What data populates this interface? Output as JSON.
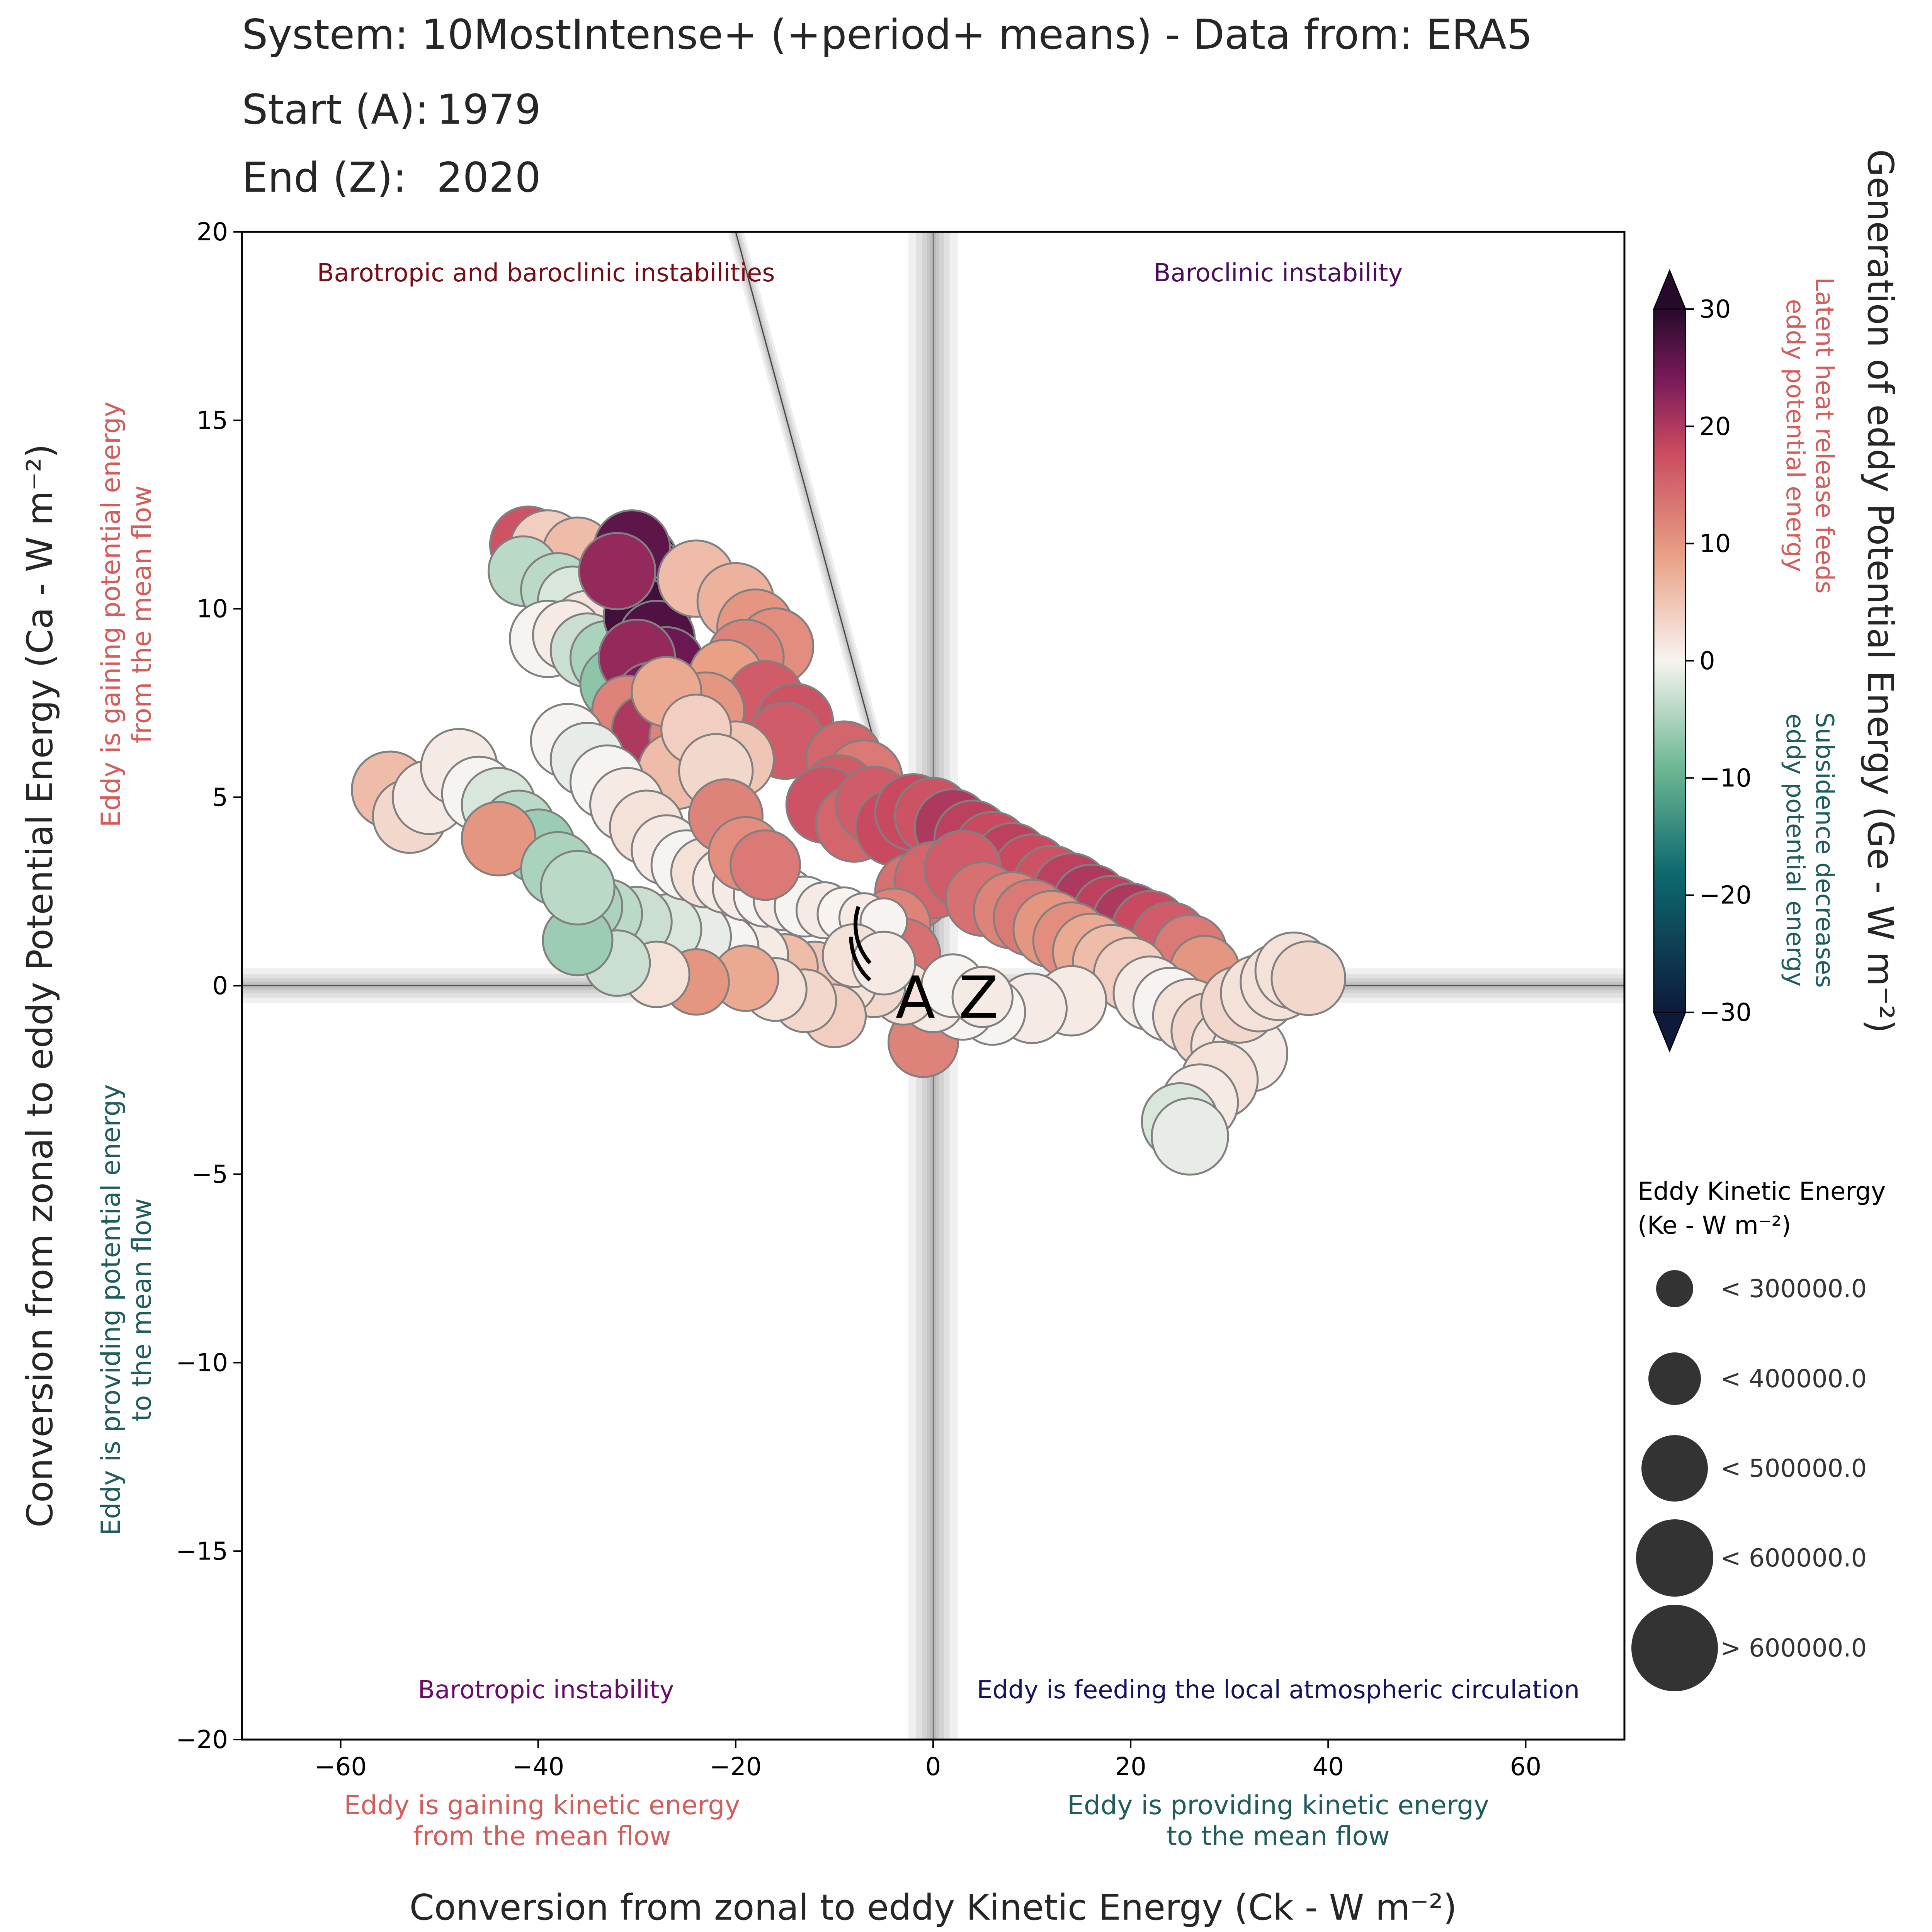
{
  "header": {
    "system_line": "System: 10MostIntense+ (+period+ means) - Data from: ERA5",
    "start_label": "Start (A):",
    "start_value": "1979",
    "end_label": "End (Z):",
    "end_value": "2020"
  },
  "colors": {
    "barotropic_baroclinic": "#7a0a14",
    "baroclinic": "#4b0c5c",
    "barotropic": "#6a0a6a",
    "feeding": "#13135e",
    "gaining": "#d35d5b",
    "providing": "#1f5c5e",
    "marker_edge": "#808080",
    "legend_marker": "#333333"
  },
  "chart_data": {
    "type": "scatter",
    "xlabel": "Conversion from zonal to eddy Kinetic Energy (Ck - W m⁻²)",
    "ylabel": "Conversion from zonal to eddy Potential Energy (Ca - W m⁻²)",
    "xlim": [
      -70,
      70
    ],
    "ylim": [
      -20,
      20
    ],
    "x_ticks": [
      -60,
      -40,
      -20,
      0,
      20,
      40,
      60
    ],
    "x_tick_labels": [
      "−60",
      "−40",
      "−20",
      "0",
      "20",
      "40",
      "60"
    ],
    "y_ticks": [
      -20,
      -15,
      -10,
      -5,
      0,
      5,
      10,
      15,
      20
    ],
    "y_tick_labels": [
      "−20",
      "−15",
      "−10",
      "−5",
      "0",
      "5",
      "10",
      "15",
      "20"
    ],
    "quadrant_labels": {
      "top_left": "Barotropic and baroclinic instabilities",
      "top_right": "Baroclinic instability",
      "bottom_left": "Barotropic instability",
      "bottom_right": "Eddy is feeding the local atmospheric circulation"
    },
    "side_labels": {
      "y_top": "Eddy is gaining potential energy\nfrom the mean flow",
      "y_bottom": "Eddy is providing potential energy\nto the mean flow",
      "x_left": "Eddy is gaining kinetic energy\nfrom the mean flow",
      "x_right": "Eddy is providing kinetic energy\nto the mean flow"
    },
    "start_marker": "A",
    "end_marker": "Z",
    "colorbar": {
      "label": "Generation of eddy Potential Energy (Ge - W m⁻²)",
      "min": -30,
      "max": 30,
      "ticks": [
        30,
        20,
        10,
        0,
        -10,
        -20,
        -30
      ],
      "tick_labels": [
        "30",
        "20",
        "10",
        "0",
        "−10",
        "−20",
        "−30"
      ],
      "upper_note": "Latent heat release feeds\neddy potential energy",
      "lower_note": "Subsidence decreases\neddy potential energy"
    },
    "size_legend": {
      "title": "Eddy Kinetic Energy\n(Ke - W m⁻²)",
      "entries": [
        "< 300000.0",
        "< 400000.0",
        "< 500000.0",
        "< 600000.0",
        "> 600000.0"
      ]
    },
    "points": [
      {
        "x": -41,
        "y": 11.7,
        "ge": 17,
        "ke": 500000
      },
      {
        "x": -39,
        "y": 11.6,
        "ge": 4,
        "ke": 500000
      },
      {
        "x": -36,
        "y": 11.5,
        "ge": 6,
        "ke": 450000
      },
      {
        "x": -41.5,
        "y": 11,
        "ge": -4,
        "ke": 450000
      },
      {
        "x": -38,
        "y": 10.5,
        "ge": -4,
        "ke": 480000
      },
      {
        "x": -36.5,
        "y": 10.2,
        "ge": -2,
        "ke": 450000
      },
      {
        "x": -35,
        "y": 9.5,
        "ge": 2,
        "ke": 480000
      },
      {
        "x": -39,
        "y": 9.2,
        "ge": 0,
        "ke": 500000
      },
      {
        "x": -37,
        "y": 9.3,
        "ge": 1,
        "ke": 450000
      },
      {
        "x": -35,
        "y": 8.9,
        "ge": -3,
        "ke": 480000
      },
      {
        "x": -33,
        "y": 8.7,
        "ge": -5,
        "ke": 480000
      },
      {
        "x": -32,
        "y": 8.0,
        "ge": -7,
        "ke": 480000
      },
      {
        "x": -30,
        "y": 11.2,
        "ge": 30,
        "ke": 550000
      },
      {
        "x": -29,
        "y": 10.8,
        "ge": 28,
        "ke": 550000
      },
      {
        "x": -28,
        "y": 10.4,
        "ge": 30,
        "ke": 550000
      },
      {
        "x": -29.5,
        "y": 9.8,
        "ge": 28,
        "ke": 500000
      },
      {
        "x": -30.5,
        "y": 11.6,
        "ge": 26,
        "ke": 500000
      },
      {
        "x": -32,
        "y": 11.0,
        "ge": 22,
        "ke": 500000
      },
      {
        "x": -28,
        "y": 9.2,
        "ge": 27,
        "ke": 500000
      },
      {
        "x": -27,
        "y": 8.5,
        "ge": 25,
        "ke": 500000
      },
      {
        "x": -30,
        "y": 8.7,
        "ge": 22,
        "ke": 500000
      },
      {
        "x": -28.5,
        "y": 7.6,
        "ge": 24,
        "ke": 480000
      },
      {
        "x": -31,
        "y": 7.3,
        "ge": 12,
        "ke": 450000
      },
      {
        "x": -29,
        "y": 6.8,
        "ge": 20,
        "ke": 450000
      },
      {
        "x": -24,
        "y": 10.8,
        "ge": 6,
        "ke": 500000
      },
      {
        "x": -20,
        "y": 10.2,
        "ge": 7,
        "ke": 500000
      },
      {
        "x": -18,
        "y": 9.5,
        "ge": 10,
        "ke": 500000
      },
      {
        "x": -16,
        "y": 9.0,
        "ge": 11,
        "ke": 500000
      },
      {
        "x": -19,
        "y": 8.7,
        "ge": 12,
        "ke": 500000
      },
      {
        "x": -21,
        "y": 8.2,
        "ge": 9,
        "ke": 480000
      },
      {
        "x": -17,
        "y": 7.6,
        "ge": 16,
        "ke": 500000
      },
      {
        "x": -14,
        "y": 7.0,
        "ge": 17,
        "ke": 500000
      },
      {
        "x": -15,
        "y": 6.5,
        "ge": 16,
        "ke": 500000
      },
      {
        "x": -23,
        "y": 7.3,
        "ge": 10,
        "ke": 500000
      },
      {
        "x": -25,
        "y": 6.6,
        "ge": 12,
        "ke": 480000
      },
      {
        "x": -26,
        "y": 5.7,
        "ge": 6,
        "ke": 500000
      },
      {
        "x": -20,
        "y": 6.0,
        "ge": 5,
        "ke": 500000
      },
      {
        "x": -27,
        "y": 7.8,
        "ge": 8,
        "ke": 450000
      },
      {
        "x": -9,
        "y": 6.0,
        "ge": 15,
        "ke": 500000
      },
      {
        "x": -7,
        "y": 5.5,
        "ge": 13,
        "ke": 500000
      },
      {
        "x": -9.5,
        "y": 5.1,
        "ge": 16,
        "ke": 500000
      },
      {
        "x": -11,
        "y": 4.8,
        "ge": 17,
        "ke": 500000
      },
      {
        "x": -8,
        "y": 4.3,
        "ge": 15,
        "ke": 500000
      },
      {
        "x": -6,
        "y": 4.8,
        "ge": 16,
        "ke": 500000
      },
      {
        "x": -4,
        "y": 4.2,
        "ge": 18,
        "ke": 500000
      },
      {
        "x": -2,
        "y": 4.6,
        "ge": 18,
        "ke": 500000
      },
      {
        "x": 0,
        "y": 4.5,
        "ge": 17,
        "ke": 500000
      },
      {
        "x": 2,
        "y": 4.2,
        "ge": 20,
        "ke": 500000
      },
      {
        "x": 4,
        "y": 3.9,
        "ge": 19,
        "ke": 500000
      },
      {
        "x": 6,
        "y": 3.6,
        "ge": 18,
        "ke": 500000
      },
      {
        "x": 8,
        "y": 3.3,
        "ge": 19,
        "ke": 500000
      },
      {
        "x": 10,
        "y": 3.0,
        "ge": 18,
        "ke": 500000
      },
      {
        "x": 12,
        "y": 2.7,
        "ge": 17,
        "ke": 500000
      },
      {
        "x": 14,
        "y": 2.5,
        "ge": 19,
        "ke": 500000
      },
      {
        "x": 16,
        "y": 2.2,
        "ge": 20,
        "ke": 500000
      },
      {
        "x": 18,
        "y": 1.9,
        "ge": 19,
        "ke": 500000
      },
      {
        "x": 20,
        "y": 1.7,
        "ge": 20,
        "ke": 500000
      },
      {
        "x": 22,
        "y": 1.5,
        "ge": 18,
        "ke": 500000
      },
      {
        "x": 24,
        "y": 1.2,
        "ge": 16,
        "ke": 500000
      },
      {
        "x": 26,
        "y": 0.9,
        "ge": 13,
        "ke": 480000
      },
      {
        "x": 27.5,
        "y": 0.4,
        "ge": 10,
        "ke": 450000
      },
      {
        "x": -2,
        "y": 2.5,
        "ge": 14,
        "ke": 500000
      },
      {
        "x": 0,
        "y": 2.8,
        "ge": 15,
        "ke": 500000
      },
      {
        "x": 3,
        "y": 3.1,
        "ge": 16,
        "ke": 500000
      },
      {
        "x": 5,
        "y": 2.3,
        "ge": 14,
        "ke": 480000
      },
      {
        "x": 8,
        "y": 2.0,
        "ge": 12,
        "ke": 500000
      },
      {
        "x": 10,
        "y": 1.8,
        "ge": 13,
        "ke": 500000
      },
      {
        "x": 12,
        "y": 1.5,
        "ge": 10,
        "ke": 500000
      },
      {
        "x": 14,
        "y": 1.2,
        "ge": 11,
        "ke": 500000
      },
      {
        "x": 16,
        "y": 0.9,
        "ge": 8,
        "ke": 500000
      },
      {
        "x": 18,
        "y": 0.6,
        "ge": 6,
        "ke": 500000
      },
      {
        "x": 20,
        "y": 0.3,
        "ge": 4,
        "ke": 480000
      },
      {
        "x": -4,
        "y": 1.6,
        "ge": 12,
        "ke": 480000
      },
      {
        "x": -3,
        "y": 0.8,
        "ge": 14,
        "ke": 480000
      },
      {
        "x": -1,
        "y": -1.5,
        "ge": 12,
        "ke": 450000
      },
      {
        "x": 22,
        "y": -0.2,
        "ge": 1,
        "ke": 480000
      },
      {
        "x": 24,
        "y": -0.5,
        "ge": 0,
        "ke": 480000
      },
      {
        "x": 26,
        "y": -0.8,
        "ge": 2,
        "ke": 480000
      },
      {
        "x": 28,
        "y": -1.2,
        "ge": 3,
        "ke": 500000
      },
      {
        "x": 30,
        "y": -1.6,
        "ge": 2,
        "ke": 500000
      },
      {
        "x": 32,
        "y": -1.8,
        "ge": 1,
        "ke": 500000
      },
      {
        "x": 29,
        "y": -2.5,
        "ge": 2,
        "ke": 500000
      },
      {
        "x": 27,
        "y": -3.1,
        "ge": 1,
        "ke": 500000
      },
      {
        "x": 25,
        "y": -3.6,
        "ge": -2,
        "ke": 500000
      },
      {
        "x": 26,
        "y": -4.0,
        "ge": -1,
        "ke": 500000
      },
      {
        "x": 31,
        "y": -0.5,
        "ge": 3,
        "ke": 500000
      },
      {
        "x": 33,
        "y": -0.2,
        "ge": 2,
        "ke": 500000
      },
      {
        "x": 35,
        "y": 0.1,
        "ge": 2,
        "ke": 500000
      },
      {
        "x": 36.5,
        "y": 0.4,
        "ge": 2,
        "ke": 500000
      },
      {
        "x": 38,
        "y": 0.2,
        "ge": 3,
        "ke": 480000
      },
      {
        "x": 14,
        "y": -0.4,
        "ge": 1,
        "ke": 450000
      },
      {
        "x": 10,
        "y": -0.6,
        "ge": 1,
        "ke": 450000
      },
      {
        "x": 6,
        "y": -0.7,
        "ge": 0,
        "ke": 420000
      },
      {
        "x": 3,
        "y": -0.6,
        "ge": 0,
        "ke": 400000
      },
      {
        "x": 0,
        "y": -0.4,
        "ge": 1,
        "ke": 400000
      },
      {
        "x": -3,
        "y": -0.2,
        "ge": 2,
        "ke": 400000
      },
      {
        "x": -6,
        "y": 0.0,
        "ge": 3,
        "ke": 400000
      },
      {
        "x": -9,
        "y": 0.1,
        "ge": 2,
        "ke": 420000
      },
      {
        "x": -12,
        "y": 0.3,
        "ge": 5,
        "ke": 420000
      },
      {
        "x": -15,
        "y": 0.5,
        "ge": 6,
        "ke": 420000
      },
      {
        "x": -18,
        "y": 0.8,
        "ge": 1,
        "ke": 420000
      },
      {
        "x": -21,
        "y": 1.0,
        "ge": 0,
        "ke": 420000
      },
      {
        "x": -24,
        "y": 1.3,
        "ge": -1,
        "ke": 450000
      },
      {
        "x": -27,
        "y": 1.5,
        "ge": -2,
        "ke": 450000
      },
      {
        "x": -30,
        "y": 1.7,
        "ge": -3,
        "ke": 450000
      },
      {
        "x": -33,
        "y": 1.9,
        "ge": -4,
        "ke": 450000
      },
      {
        "x": -35,
        "y": 2.1,
        "ge": -5,
        "ke": 450000
      },
      {
        "x": -10,
        "y": -0.8,
        "ge": 4,
        "ke": 400000
      },
      {
        "x": -13,
        "y": -0.4,
        "ge": 3,
        "ke": 400000
      },
      {
        "x": -16,
        "y": -0.1,
        "ge": 2,
        "ke": 400000
      },
      {
        "x": -19,
        "y": 0.2,
        "ge": 8,
        "ke": 420000
      },
      {
        "x": -24,
        "y": 0.1,
        "ge": 10,
        "ke": 420000
      },
      {
        "x": -28,
        "y": 0.3,
        "ge": 2,
        "ke": 420000
      },
      {
        "x": -32,
        "y": 0.6,
        "ge": -3,
        "ke": 420000
      },
      {
        "x": -36,
        "y": 1.2,
        "ge": -6,
        "ke": 450000
      },
      {
        "x": -55,
        "y": 5.2,
        "ge": 6,
        "ke": 500000
      },
      {
        "x": -53,
        "y": 4.5,
        "ge": 3,
        "ke": 480000
      },
      {
        "x": -51,
        "y": 5.0,
        "ge": 1,
        "ke": 480000
      },
      {
        "x": -48,
        "y": 5.8,
        "ge": 1,
        "ke": 500000
      },
      {
        "x": -46,
        "y": 5.1,
        "ge": 0,
        "ke": 480000
      },
      {
        "x": -44,
        "y": 4.8,
        "ge": -2,
        "ke": 480000
      },
      {
        "x": -42,
        "y": 4.2,
        "ge": -4,
        "ke": 480000
      },
      {
        "x": -40,
        "y": 3.7,
        "ge": -6,
        "ke": 480000
      },
      {
        "x": -44,
        "y": 3.9,
        "ge": 10,
        "ke": 480000
      },
      {
        "x": -38,
        "y": 3.1,
        "ge": -5,
        "ke": 480000
      },
      {
        "x": -36,
        "y": 2.6,
        "ge": -4,
        "ke": 480000
      },
      {
        "x": -37,
        "y": 6.5,
        "ge": 0,
        "ke": 480000
      },
      {
        "x": -35,
        "y": 6.0,
        "ge": -1,
        "ke": 480000
      },
      {
        "x": -33,
        "y": 5.4,
        "ge": 0,
        "ke": 480000
      },
      {
        "x": -31,
        "y": 4.8,
        "ge": 1,
        "ke": 480000
      },
      {
        "x": -29,
        "y": 4.2,
        "ge": 2,
        "ke": 480000
      },
      {
        "x": -27,
        "y": 3.6,
        "ge": 1,
        "ke": 450000
      },
      {
        "x": -25,
        "y": 3.2,
        "ge": 0,
        "ke": 450000
      },
      {
        "x": -23,
        "y": 3.0,
        "ge": 2,
        "ke": 450000
      },
      {
        "x": -21,
        "y": 2.8,
        "ge": 1,
        "ke": 420000
      },
      {
        "x": -19,
        "y": 2.6,
        "ge": 1,
        "ke": 420000
      },
      {
        "x": -17,
        "y": 2.4,
        "ge": 0,
        "ke": 400000
      },
      {
        "x": -15,
        "y": 2.3,
        "ge": 1,
        "ke": 400000
      },
      {
        "x": -13,
        "y": 2.1,
        "ge": 0,
        "ke": 380000
      },
      {
        "x": -11,
        "y": 2.0,
        "ge": 1,
        "ke": 350000
      },
      {
        "x": -9,
        "y": 1.9,
        "ge": 0,
        "ke": 330000
      },
      {
        "x": -7,
        "y": 1.8,
        "ge": 1,
        "ke": 300000
      },
      {
        "x": -5,
        "y": 1.7,
        "ge": 0,
        "ke": 280000
      },
      {
        "x": -24,
        "y": 6.8,
        "ge": 4,
        "ke": 450000
      },
      {
        "x": -22,
        "y": 5.7,
        "ge": 3,
        "ke": 480000
      },
      {
        "x": -21,
        "y": 4.5,
        "ge": 12,
        "ke": 480000
      },
      {
        "x": -19,
        "y": 3.5,
        "ge": 11,
        "ke": 480000
      },
      {
        "x": -17,
        "y": 3.2,
        "ge": 13,
        "ke": 450000
      },
      {
        "x": -8,
        "y": 0.8,
        "ge": 2,
        "ke": 400000
      },
      {
        "x": -5,
        "y": 0.6,
        "ge": 1,
        "ke": 400000
      },
      {
        "x": 2,
        "y": 0.0,
        "ge": 0,
        "ke": 400000
      },
      {
        "x": 5,
        "y": -0.3,
        "ge": 1,
        "ke": 380000
      }
    ]
  }
}
